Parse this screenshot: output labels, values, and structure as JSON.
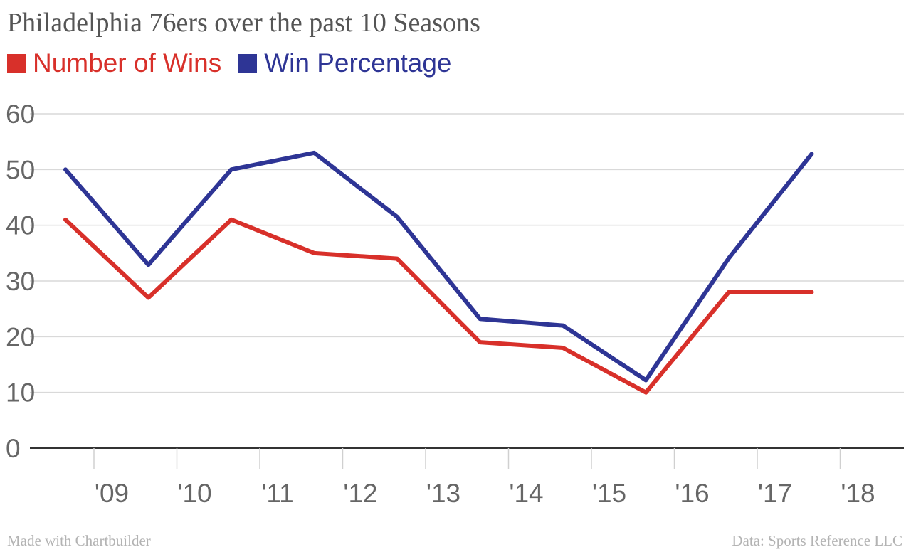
{
  "chart_data": {
    "type": "line",
    "title": "Philadelphia 76ers over the past 10 Seasons",
    "x": [
      "'09",
      "'10",
      "'11",
      "'12",
      "'13",
      "'14",
      "'15",
      "'16",
      "'17",
      "'18"
    ],
    "series": [
      {
        "name": "Number of Wins",
        "color": "#d8302a",
        "values": [
          41,
          27,
          41,
          35,
          34,
          19,
          18,
          10,
          28,
          28
        ]
      },
      {
        "name": "Win Percentage",
        "color": "#2e3595",
        "values": [
          50,
          32.9,
          50,
          53,
          41.5,
          23.2,
          22,
          12.2,
          34.1,
          52.8
        ]
      }
    ],
    "yticks": [
      0,
      10,
      20,
      30,
      40,
      50,
      60
    ],
    "ylim": [
      0,
      60
    ],
    "grid": true,
    "legend_position": "top-left"
  },
  "footer": {
    "left": "Made with Chartbuilder",
    "right": "Data: Sports Reference LLC"
  }
}
